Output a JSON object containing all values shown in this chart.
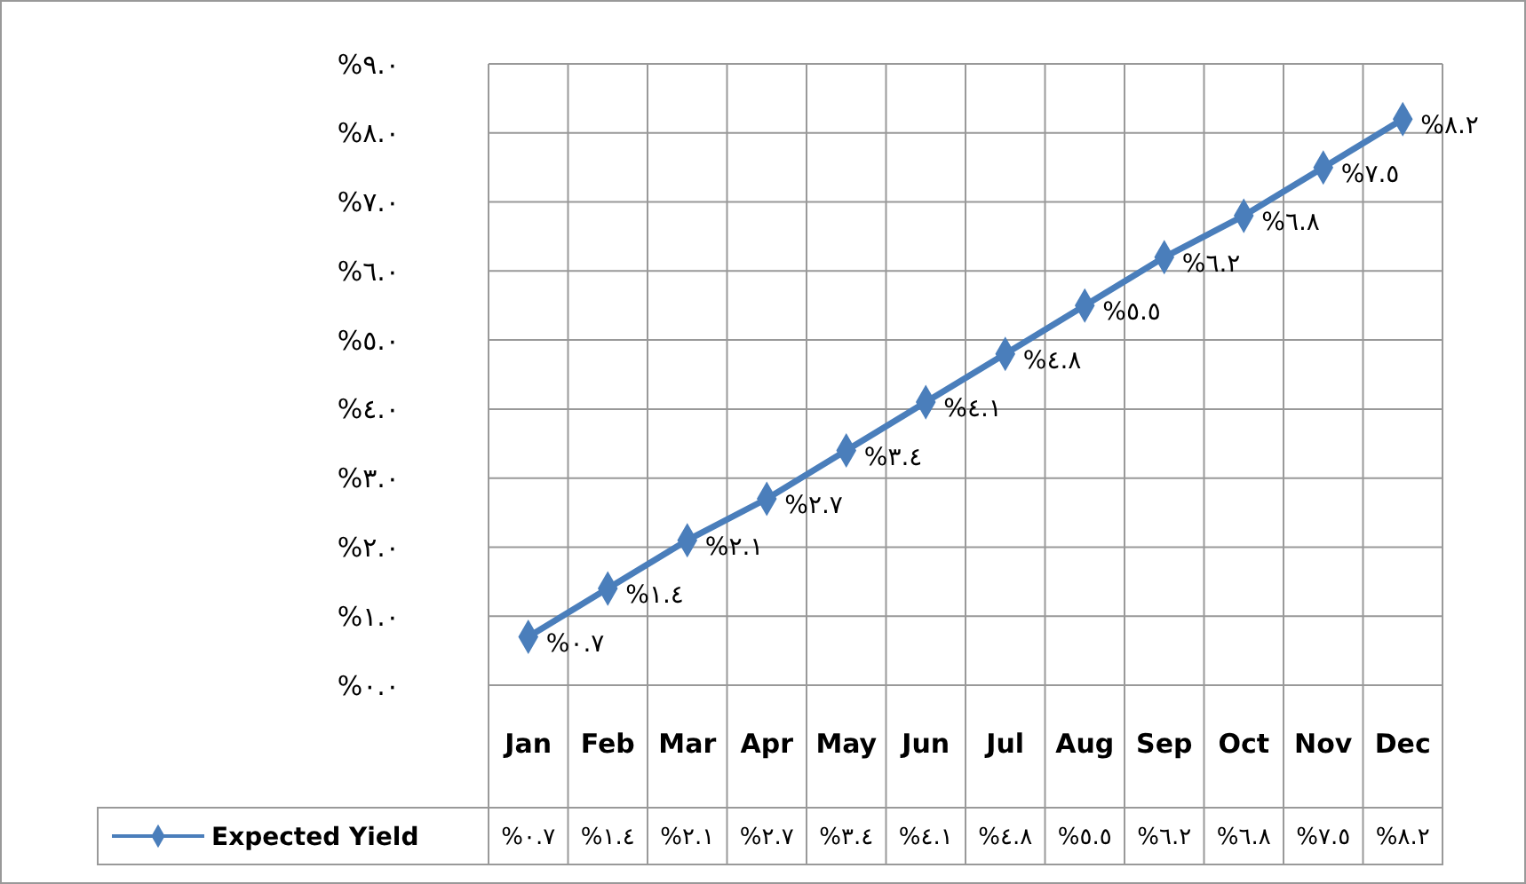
{
  "chart_data": {
    "type": "line",
    "categories": [
      "Jan",
      "Feb",
      "Mar",
      "Apr",
      "May",
      "Jun",
      "Jul",
      "Aug",
      "Sep",
      "Oct",
      "Nov",
      "Dec"
    ],
    "series": [
      {
        "name": "Expected Yield",
        "color": "#4a7ebb",
        "values": [
          0.7,
          1.4,
          2.1,
          2.7,
          3.4,
          4.1,
          4.8,
          5.5,
          6.2,
          6.8,
          7.5,
          8.2
        ],
        "value_labels": [
          "%٠.٧",
          "%١.٤",
          "%٢.١",
          "%٢.٧",
          "%٣.٤",
          "%٤.١",
          "%٤.٨",
          "%٥.٥",
          "%٦.٢",
          "%٦.٨",
          "%٧.٥",
          "%٨.٢"
        ]
      }
    ],
    "ylim": [
      0,
      9
    ],
    "yticks": [
      {
        "value": 0,
        "label": "%٠.٠"
      },
      {
        "value": 1,
        "label": "%١.٠"
      },
      {
        "value": 2,
        "label": "%٢.٠"
      },
      {
        "value": 3,
        "label": "%٣.٠"
      },
      {
        "value": 4,
        "label": "%٤.٠"
      },
      {
        "value": 5,
        "label": "%٥.٠"
      },
      {
        "value": 6,
        "label": "%٦.٠"
      },
      {
        "value": 7,
        "label": "%٧.٠"
      },
      {
        "value": 8,
        "label": "%٨.٠"
      },
      {
        "value": 9,
        "label": "%٩.٠"
      }
    ],
    "grid": true,
    "legend": "bottom",
    "marker": "diamond",
    "line_style": "solid"
  }
}
